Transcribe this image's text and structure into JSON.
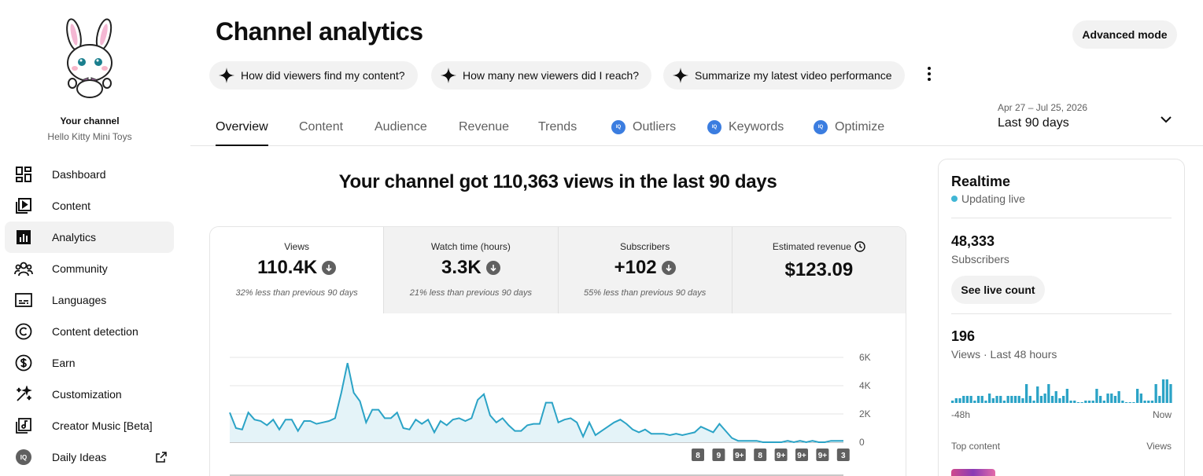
{
  "sidebar": {
    "channel_label": "Your channel",
    "channel_name": "Hello Kitty Mini Toys",
    "items": [
      {
        "label": "Dashboard",
        "icon": "dashboard-icon"
      },
      {
        "label": "Content",
        "icon": "content-icon"
      },
      {
        "label": "Analytics",
        "icon": "analytics-icon",
        "active": true
      },
      {
        "label": "Community",
        "icon": "community-icon"
      },
      {
        "label": "Languages",
        "icon": "languages-icon"
      },
      {
        "label": "Content detection",
        "icon": "copyright-icon"
      },
      {
        "label": "Earn",
        "icon": "dollar-icon"
      },
      {
        "label": "Customization",
        "icon": "magic-wand-icon"
      },
      {
        "label": "Creator Music [Beta]",
        "icon": "music-icon"
      },
      {
        "label": "Daily Ideas",
        "icon": "iq-icon",
        "external": true
      }
    ]
  },
  "header": {
    "title": "Channel analytics",
    "advanced_mode": "Advanced mode",
    "chips": [
      "How did viewers find my content?",
      "How many new viewers did I reach?",
      "Summarize my latest video performance"
    ]
  },
  "tabs": [
    {
      "label": "Overview",
      "active": true
    },
    {
      "label": "Content"
    },
    {
      "label": "Audience"
    },
    {
      "label": "Revenue"
    },
    {
      "label": "Trends"
    },
    {
      "label": "Outliers",
      "iq": true
    },
    {
      "label": "Keywords",
      "iq": true
    },
    {
      "label": "Optimize",
      "iq": true
    }
  ],
  "date_range": {
    "dates": "Apr 27 – Jul 25, 2026",
    "label": "Last 90 days"
  },
  "main": {
    "headline": "Your channel got 110,363 views in the last 90 days",
    "metrics": [
      {
        "label": "Views",
        "value": "110.4K",
        "trend": "down",
        "note": "32% less than previous 90 days"
      },
      {
        "label": "Watch time (hours)",
        "value": "3.3K",
        "trend": "down",
        "note": "21% less than previous 90 days"
      },
      {
        "label": "Subscribers",
        "value": "+102",
        "trend": "down",
        "note": "55% less than previous 90 days"
      },
      {
        "label": "Estimated revenue",
        "value": "$123.09",
        "trend": "",
        "note": ""
      }
    ]
  },
  "chart_data": {
    "type": "line",
    "series": [
      {
        "values": [
          2100,
          1000,
          900,
          2100,
          1600,
          1500,
          1200,
          1600,
          900,
          1600,
          1600,
          800,
          1500,
          1500,
          1300,
          1400,
          1500,
          1700,
          3500,
          5600,
          3500,
          2900,
          1400,
          2300,
          2300,
          1700,
          1700,
          2100,
          1000,
          900,
          1600,
          1300,
          1600,
          700,
          1500,
          1200,
          1600,
          1700,
          1500,
          1700,
          3000,
          3400,
          1900,
          1400,
          1700,
          1200,
          800,
          800,
          1200,
          1300,
          1300,
          2800,
          2800,
          1400,
          1600,
          1700,
          1400,
          400,
          1400,
          500,
          800,
          1100,
          1400,
          1600,
          1300,
          900,
          700,
          900,
          600,
          600,
          600,
          500,
          600,
          500,
          600,
          700,
          1100,
          900,
          700,
          1300,
          800,
          300,
          100,
          100,
          100,
          100,
          0,
          0,
          0,
          0,
          100,
          0,
          100,
          0,
          100,
          0,
          0,
          100,
          100,
          100
        ]
      }
    ],
    "ylim": [
      0,
      6000
    ],
    "y_ticks": [
      "6K",
      "4K",
      "2K",
      "0"
    ],
    "markers": [
      "8",
      "9",
      "9+",
      "8",
      "9+",
      "9+",
      "9+",
      "3"
    ],
    "grid": true,
    "colors": {
      "line": "#2ba3c6",
      "fill": "#e4f3f8"
    }
  },
  "realtime": {
    "title": "Realtime",
    "live": "Updating live",
    "subscribers": "48,333",
    "subscribers_label": "Subscribers",
    "live_count": "See live count",
    "views": "196",
    "views_label": "Views · Last 48 hours",
    "axis_start": "-48h",
    "axis_end": "Now",
    "top_content": "Top content",
    "top_views": "Views",
    "bars": [
      1,
      2,
      2,
      3,
      3,
      3,
      1,
      3,
      3,
      1,
      4,
      2,
      3,
      3,
      1,
      3,
      3,
      3,
      3,
      2,
      8,
      3,
      1,
      7,
      3,
      4,
      8,
      3,
      5,
      2,
      3,
      6,
      1,
      1,
      0,
      0,
      1,
      1,
      1,
      6,
      3,
      1,
      4,
      4,
      3,
      5,
      1,
      0,
      0,
      0,
      6,
      4,
      1,
      1,
      1,
      8,
      3,
      10,
      10,
      8
    ]
  }
}
